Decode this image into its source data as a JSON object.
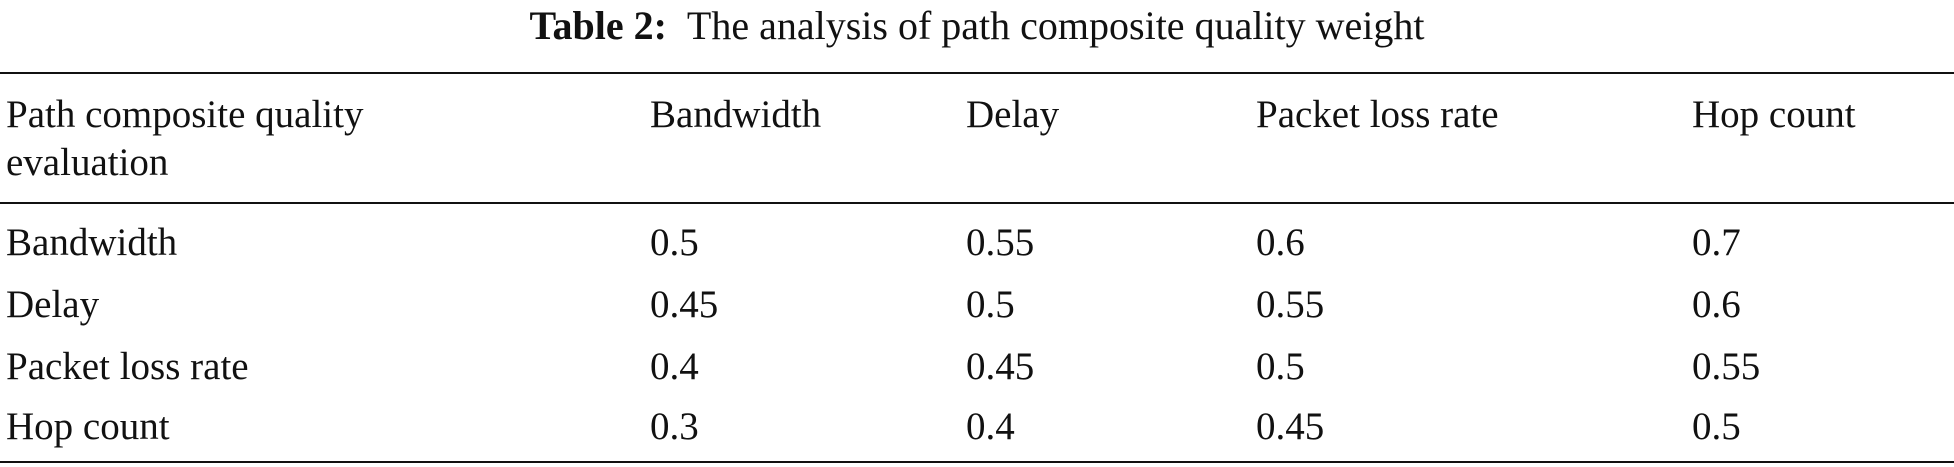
{
  "title": {
    "label": "Table 2:",
    "text": "The analysis of path composite quality weight"
  },
  "table": {
    "header": [
      "Path composite quality evaluation",
      "Bandwidth",
      "Delay",
      "Packet loss rate",
      "Hop count"
    ],
    "rows": [
      [
        "Bandwidth",
        0.5,
        0.55,
        0.6,
        0.7
      ],
      [
        "Delay",
        0.45,
        0.5,
        0.55,
        0.6
      ],
      [
        "Packet loss rate",
        0.4,
        0.45,
        0.5,
        0.55
      ],
      [
        "Hop count",
        0.3,
        0.4,
        0.45,
        0.5
      ]
    ]
  }
}
